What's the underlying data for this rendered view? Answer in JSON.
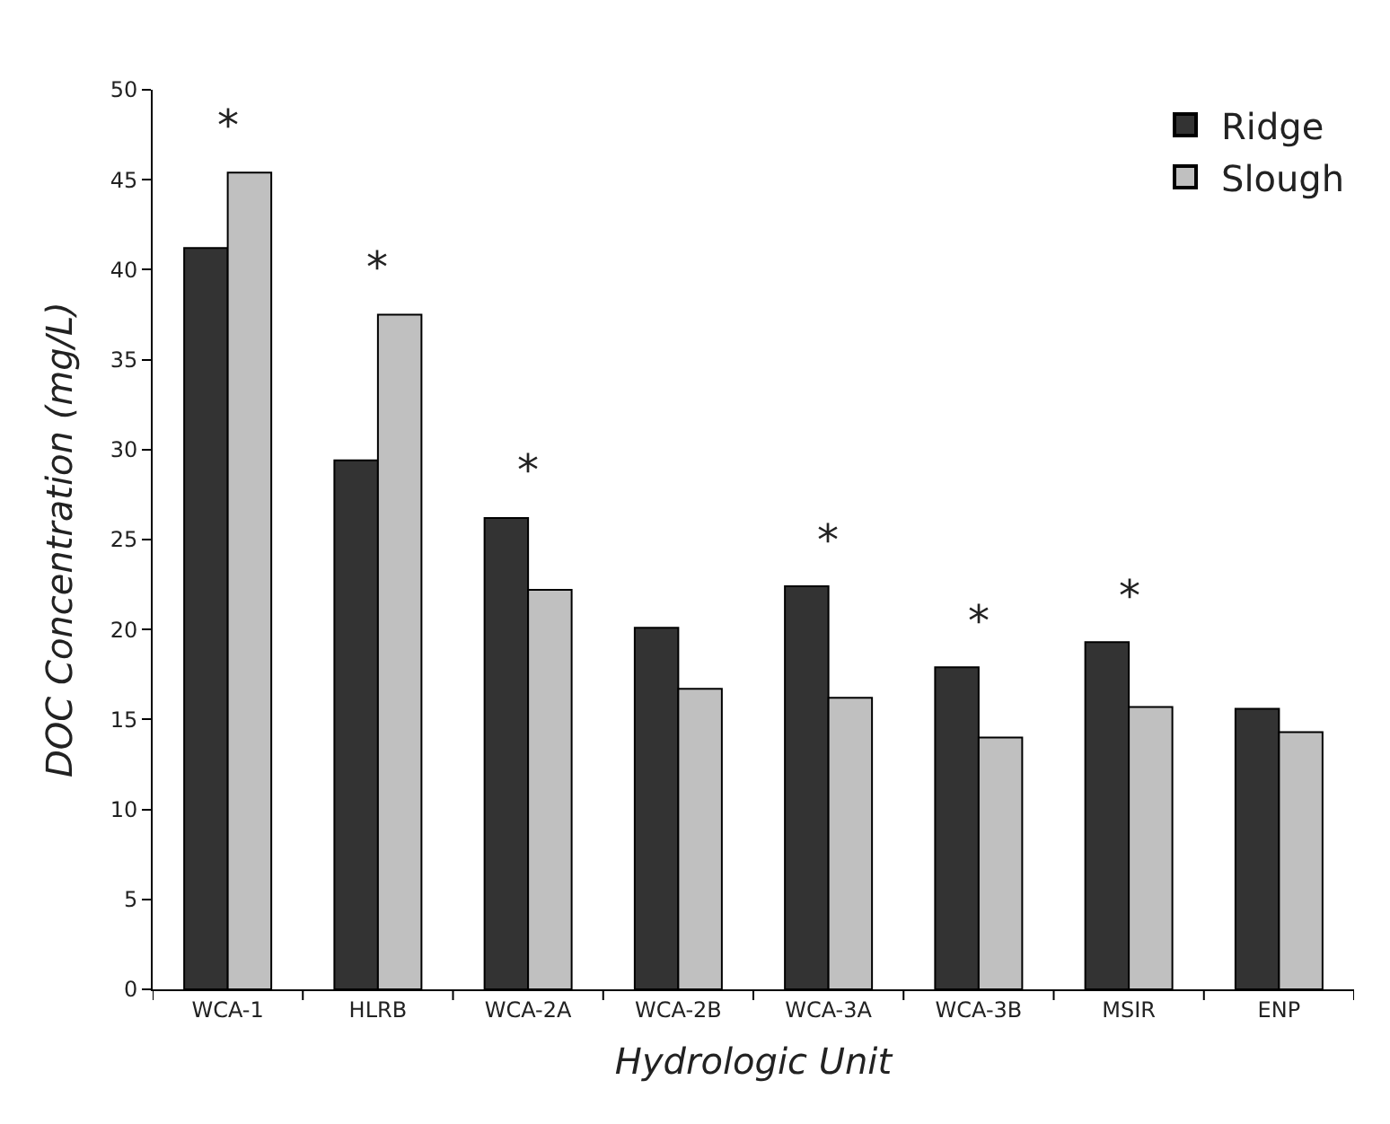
{
  "chart_data": {
    "type": "bar",
    "xlabel": "Hydrologic Unit",
    "ylabel": "DOC Concentration (mg/L)",
    "categories": [
      "WCA-1",
      "HLRB",
      "WCA-2A",
      "WCA-2B",
      "WCA-3A",
      "WCA-3B",
      "MSIR",
      "ENP"
    ],
    "series": [
      {
        "name": "Ridge",
        "color": "#333333",
        "values": [
          41.2,
          29.4,
          26.2,
          20.1,
          22.4,
          17.9,
          19.3,
          15.6
        ]
      },
      {
        "name": "Slough",
        "color": "#c0c0c0",
        "values": [
          45.4,
          37.5,
          22.2,
          16.7,
          16.2,
          14.0,
          15.7,
          14.3
        ]
      }
    ],
    "annotations": [
      {
        "text": "*",
        "x": "WCA-1",
        "y": 45.4
      },
      {
        "text": "*",
        "x": "HLRB",
        "y": 37.5
      },
      {
        "text": "*",
        "x": "WCA-2A",
        "y": 26.2
      },
      {
        "text": "*",
        "x": "WCA-3A",
        "y": 22.4
      },
      {
        "text": "*",
        "x": "WCA-3B",
        "y": 17.9
      },
      {
        "text": "*",
        "x": "MSIR",
        "y": 19.3
      }
    ],
    "ylim": [
      0,
      50
    ],
    "yticks": [
      0,
      5,
      10,
      15,
      20,
      25,
      30,
      35,
      40,
      45,
      50
    ],
    "legend": "top right"
  }
}
